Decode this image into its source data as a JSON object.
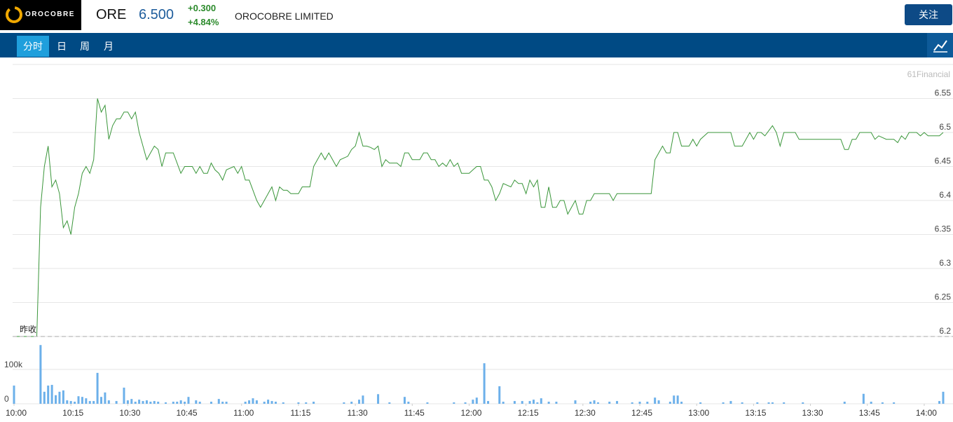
{
  "header": {
    "logo_text": "OROCOBRE",
    "ticker": "ORE",
    "price": "6.500",
    "change": "+0.300",
    "change_pct": "+4.84%",
    "company": "OROCOBRE LIMITED",
    "follow_button": "关注"
  },
  "tabs": [
    "分时",
    "日",
    "周",
    "月"
  ],
  "watermark": "61Financial",
  "chart_data": [
    {
      "type": "line",
      "name": "price",
      "x": [
        600,
        606,
        607,
        608,
        609,
        610,
        611,
        612,
        613,
        614,
        615,
        616,
        617,
        618,
        619,
        620,
        621,
        622,
        623,
        624,
        625,
        626,
        627,
        628,
        629,
        630,
        631,
        632,
        633,
        634,
        635,
        636,
        637,
        638,
        639,
        640,
        642,
        644,
        645,
        647,
        648,
        649,
        650,
        651,
        652,
        653,
        654,
        655,
        656,
        658,
        659,
        660,
        661,
        662,
        663,
        664,
        665,
        666,
        667,
        668,
        669,
        670,
        671,
        672,
        673,
        675,
        676,
        678,
        679,
        680,
        681,
        682,
        683,
        684,
        685,
        686,
        688,
        689,
        690,
        691,
        692,
        693,
        694,
        695,
        696,
        697,
        698,
        699,
        701,
        702,
        703,
        704,
        705,
        707,
        708,
        709,
        710,
        711,
        712,
        713,
        714,
        715,
        716,
        717,
        718,
        720,
        721,
        722,
        723,
        724,
        725,
        726,
        727,
        728,
        729,
        731,
        732,
        733,
        734,
        735,
        736,
        737,
        738,
        739,
        740,
        741,
        742,
        743,
        744,
        745,
        746,
        747,
        748,
        749,
        750,
        751,
        752,
        753,
        757,
        758,
        759,
        768,
        769,
        771,
        772,
        773,
        774,
        775,
        776,
        778,
        779,
        780,
        781,
        783,
        789,
        790,
        792,
        794,
        795,
        796,
        797,
        798,
        800,
        801,
        802,
        803,
        806,
        807,
        818,
        819,
        820,
        821,
        822,
        823,
        826,
        827,
        828,
        830,
        832,
        833,
        834,
        835,
        836,
        838,
        839,
        840,
        841,
        844,
        845
      ],
      "values": [
        6.2,
        6.2,
        6.39,
        6.45,
        6.48,
        6.42,
        6.43,
        6.41,
        6.36,
        6.37,
        6.35,
        6.39,
        6.41,
        6.44,
        6.45,
        6.44,
        6.46,
        6.55,
        6.53,
        6.54,
        6.49,
        6.51,
        6.52,
        6.52,
        6.53,
        6.53,
        6.52,
        6.53,
        6.5,
        6.48,
        6.46,
        6.47,
        6.48,
        6.475,
        6.45,
        6.47,
        6.47,
        6.44,
        6.45,
        6.45,
        6.44,
        6.45,
        6.44,
        6.44,
        6.455,
        6.445,
        6.44,
        6.43,
        6.445,
        6.45,
        6.44,
        6.45,
        6.43,
        6.43,
        6.415,
        6.4,
        6.39,
        6.4,
        6.41,
        6.42,
        6.4,
        6.42,
        6.415,
        6.415,
        6.41,
        6.41,
        6.42,
        6.42,
        6.45,
        6.46,
        6.47,
        6.46,
        6.47,
        6.46,
        6.45,
        6.46,
        6.465,
        6.475,
        6.48,
        6.5,
        6.48,
        6.48,
        6.478,
        6.475,
        6.48,
        6.45,
        6.46,
        6.455,
        6.455,
        6.45,
        6.47,
        6.47,
        6.46,
        6.46,
        6.47,
        6.47,
        6.46,
        6.46,
        6.45,
        6.455,
        6.45,
        6.46,
        6.45,
        6.455,
        6.44,
        6.44,
        6.445,
        6.45,
        6.45,
        6.43,
        6.43,
        6.42,
        6.4,
        6.41,
        6.425,
        6.42,
        6.43,
        6.425,
        6.425,
        6.41,
        6.43,
        6.42,
        6.43,
        6.39,
        6.39,
        6.42,
        6.39,
        6.39,
        6.4,
        6.4,
        6.38,
        6.39,
        6.4,
        6.38,
        6.38,
        6.4,
        6.4,
        6.41,
        6.41,
        6.4,
        6.41,
        6.41,
        6.46,
        6.48,
        6.47,
        6.47,
        6.5,
        6.5,
        6.48,
        6.48,
        6.49,
        6.48,
        6.49,
        6.5,
        6.5,
        6.48,
        6.48,
        6.5,
        6.49,
        6.5,
        6.5,
        6.495,
        6.51,
        6.5,
        6.48,
        6.5,
        6.5,
        6.49,
        6.49,
        6.475,
        6.475,
        6.49,
        6.49,
        6.5,
        6.5,
        6.49,
        6.495,
        6.49,
        6.49,
        6.485,
        6.495,
        6.49,
        6.5,
        6.5,
        6.495,
        6.5,
        6.495,
        6.495,
        6.5
      ],
      "color": "#3a963a",
      "xlim": [
        600,
        845
      ],
      "ylim": [
        6.2,
        6.6
      ],
      "yticks": [
        6.2,
        6.25,
        6.3,
        6.35,
        6.4,
        6.45,
        6.5,
        6.55
      ],
      "grid": true,
      "prev_close": {
        "label": "昨收",
        "value": 6.2
      }
    },
    {
      "type": "bar",
      "name": "volume",
      "x": [
        600,
        607,
        608,
        609,
        610,
        611,
        612,
        613,
        614,
        615,
        616,
        617,
        618,
        619,
        620,
        621,
        622,
        623,
        624,
        625,
        627,
        629,
        630,
        631,
        632,
        633,
        634,
        635,
        636,
        637,
        638,
        640,
        642,
        643,
        644,
        645,
        646,
        648,
        649,
        652,
        654,
        655,
        656,
        661,
        662,
        663,
        664,
        666,
        667,
        668,
        669,
        671,
        675,
        677,
        679,
        687,
        689,
        691,
        692,
        696,
        699,
        703,
        704,
        709,
        716,
        719,
        721,
        722,
        724,
        725,
        728,
        729,
        732,
        734,
        736,
        737,
        738,
        739,
        741,
        743,
        748,
        752,
        753,
        754,
        757,
        759,
        763,
        765,
        767,
        769,
        770,
        773,
        774,
        775,
        776,
        781,
        787,
        789,
        792,
        796,
        799,
        800,
        803,
        808,
        819,
        824,
        826,
        829,
        832,
        844,
        845
      ],
      "values": [
        53000,
        171000,
        35000,
        53000,
        55000,
        25000,
        35000,
        39000,
        10000,
        8000,
        6000,
        22000,
        20000,
        16000,
        8000,
        8000,
        90000,
        20000,
        33000,
        10000,
        8000,
        47000,
        10000,
        14000,
        6000,
        12000,
        8000,
        10000,
        6000,
        8000,
        6000,
        4000,
        6000,
        6000,
        10000,
        6000,
        20000,
        10000,
        6000,
        6000,
        14000,
        6000,
        6000,
        6000,
        10000,
        16000,
        10000,
        6000,
        12000,
        8000,
        6000,
        4000,
        4000,
        4000,
        6000,
        4000,
        6000,
        12000,
        24000,
        28000,
        4000,
        20000,
        6000,
        4000,
        4000,
        4000,
        12000,
        18000,
        118000,
        8000,
        51000,
        6000,
        8000,
        8000,
        8000,
        12000,
        4000,
        16000,
        6000,
        6000,
        10000,
        6000,
        10000,
        4000,
        6000,
        8000,
        4000,
        6000,
        6000,
        18000,
        10000,
        6000,
        24000,
        24000,
        6000,
        4000,
        4000,
        8000,
        4000,
        4000,
        4000,
        4000,
        4000,
        4000,
        6000,
        29000,
        6000,
        4000,
        4000,
        8000,
        35000
      ],
      "color": "#6cb0ea",
      "xlim": [
        600,
        845
      ],
      "ylim": [
        0,
        200000
      ],
      "yticks": [
        0,
        {
          "value": 100000,
          "label": "100k"
        }
      ],
      "grid": true,
      "xticks": [
        {
          "value": 600,
          "label": "10:00"
        },
        {
          "value": 615,
          "label": "10:15"
        },
        {
          "value": 630,
          "label": "10:30"
        },
        {
          "value": 645,
          "label": "10:45"
        },
        {
          "value": 660,
          "label": "11:00"
        },
        {
          "value": 675,
          "label": "11:15"
        },
        {
          "value": 690,
          "label": "11:30"
        },
        {
          "value": 705,
          "label": "11:45"
        },
        {
          "value": 720,
          "label": "12:00"
        },
        {
          "value": 735,
          "label": "12:15"
        },
        {
          "value": 750,
          "label": "12:30"
        },
        {
          "value": 765,
          "label": "12:45"
        },
        {
          "value": 780,
          "label": "13:00"
        },
        {
          "value": 795,
          "label": "13:15"
        },
        {
          "value": 810,
          "label": "13:30"
        },
        {
          "value": 825,
          "label": "13:45"
        },
        {
          "value": 840,
          "label": "14:00"
        }
      ]
    }
  ]
}
